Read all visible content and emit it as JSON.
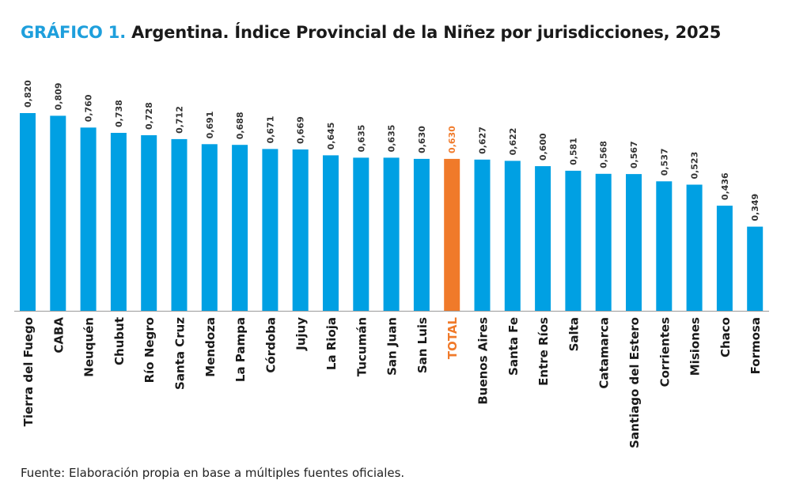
{
  "title": {
    "prefix": "GRÁFICO 1.",
    "text": "Argentina. Índice Provincial de la Niñez por jurisdicciones, 2025"
  },
  "source": "Fuente: Elaboración propia en base a múltiples fuentes oficiales.",
  "colors": {
    "bar": "#00a0e3",
    "highlight": "#f07a2a",
    "title_prefix": "#1e9fdc",
    "text": "#1a1a1a"
  },
  "chart_data": {
    "type": "bar",
    "title": "Argentina. Índice Provincial de la Niñez por jurisdicciones, 2025",
    "xlabel": "",
    "ylabel": "",
    "ylim": [
      0,
      0.82
    ],
    "grid": false,
    "legend": "none",
    "highlight_category": "TOTAL",
    "categories": [
      "Tierra del Fuego",
      "CABA",
      "Neuquén",
      "Chubut",
      "Río Negro",
      "Santa Cruz",
      "Mendoza",
      "La Pampa",
      "Córdoba",
      "Jujuy",
      "La Rioja",
      "Tucumán",
      "San Juan",
      "San Luis",
      "TOTAL",
      "Buenos Aires",
      "Santa Fe",
      "Entre Ríos",
      "Salta",
      "Catamarca",
      "Santiago del Estero",
      "Corrientes",
      "Misiones",
      "Chaco",
      "Formosa"
    ],
    "values": [
      0.82,
      0.809,
      0.76,
      0.738,
      0.728,
      0.712,
      0.691,
      0.688,
      0.671,
      0.669,
      0.645,
      0.635,
      0.635,
      0.63,
      0.63,
      0.627,
      0.622,
      0.6,
      0.581,
      0.568,
      0.567,
      0.537,
      0.523,
      0.436,
      0.349
    ],
    "labels": [
      "0,820",
      "0,809",
      "0,760",
      "0,738",
      "0,728",
      "0,712",
      "0,691",
      "0,688",
      "0,671",
      "0,669",
      "0,645",
      "0,635",
      "0,635",
      "0,630",
      "0,630",
      "0,627",
      "0,622",
      "0,600",
      "0,581",
      "0,568",
      "0,567",
      "0,537",
      "0,523",
      "0,436",
      "0,349"
    ]
  }
}
